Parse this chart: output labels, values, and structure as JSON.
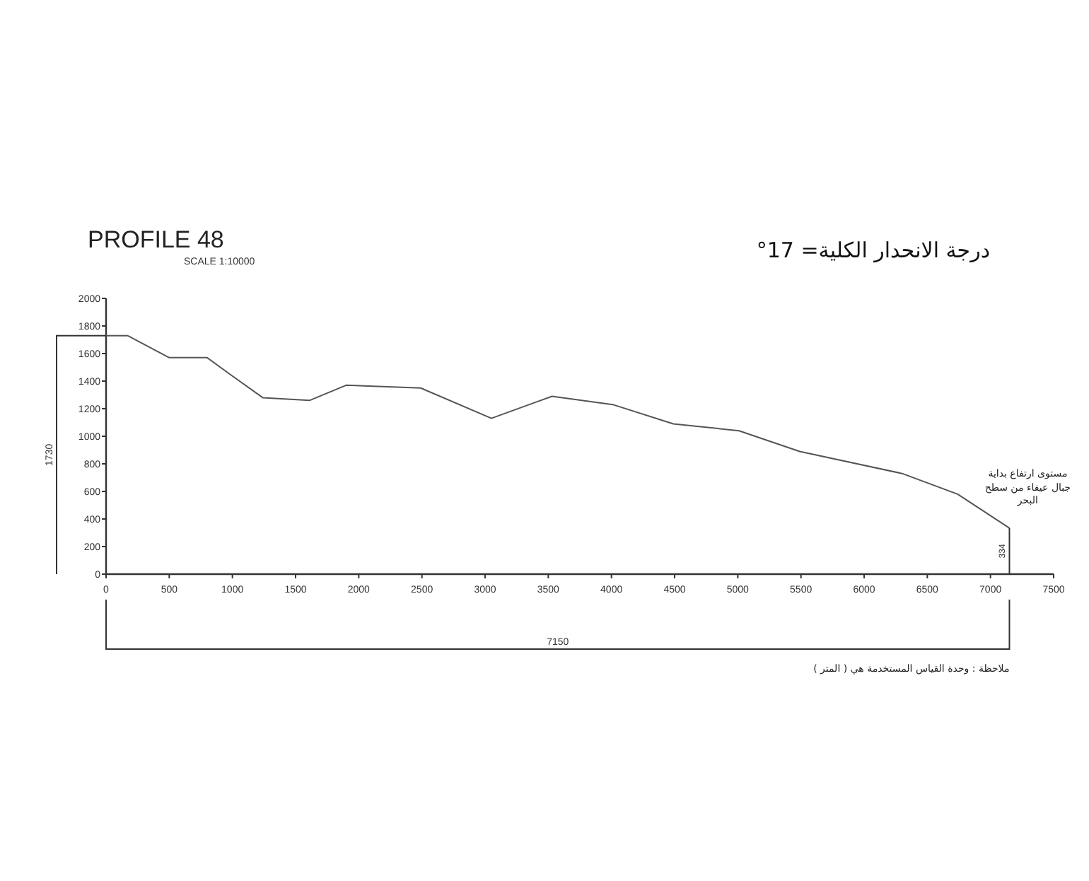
{
  "chart_data": {
    "type": "line",
    "title": "PROFILE 48",
    "subtitle": "SCALE 1:10000",
    "x": [
      0,
      170,
      500,
      800,
      980,
      1240,
      1610,
      1900,
      2490,
      3050,
      3530,
      4010,
      4490,
      5010,
      5490,
      6300,
      6740,
      7150
    ],
    "series": [
      {
        "color": "#555555",
        "values": [
          1730,
          1730,
          1570,
          1570,
          1450,
          1280,
          1260,
          1370,
          1350,
          1130,
          1290,
          1230,
          1090,
          1040,
          890,
          730,
          580,
          334
        ]
      }
    ],
    "xlim": [
      0,
      7500
    ],
    "ylim": [
      0,
      2000
    ],
    "xticks": [
      0,
      500,
      1000,
      1500,
      2000,
      2500,
      3000,
      3500,
      4000,
      4500,
      5000,
      5500,
      6000,
      6500,
      7000,
      7500
    ],
    "yticks": [
      0,
      200,
      400,
      600,
      800,
      1000,
      1200,
      1400,
      1600,
      1800,
      2000
    ],
    "grid": false,
    "marker": "none",
    "line_style": "solid",
    "annotations": [
      "درجة الانحدار الكلية= 17°",
      "1730",
      "7150",
      {
        "text": "334",
        "x": 7150,
        "y": 334
      },
      {
        "text": "مستوى ارتفاع بداية جبال عيفاء من سطح البحر",
        "x": 7150,
        "y": 334
      },
      "ملاحظة : وحدة القياس المستخدمة هي ( المتر )"
    ]
  }
}
